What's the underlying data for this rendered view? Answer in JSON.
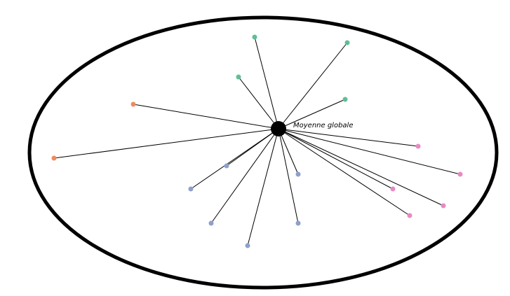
{
  "center_label": "Moyenne globale",
  "colors": {
    "ellipse": "#000000",
    "line": "#000000",
    "center": "#000000",
    "groups": {
      "green": "#5fbf95",
      "orange": "#f08a5d",
      "blue": "#8da0cb",
      "pink": "#e78ac3"
    }
  },
  "point_groups": [
    {
      "name": "green",
      "count": 4
    },
    {
      "name": "orange",
      "count": 2
    },
    {
      "name": "blue",
      "count": 6
    },
    {
      "name": "pink",
      "count": 5
    }
  ]
}
